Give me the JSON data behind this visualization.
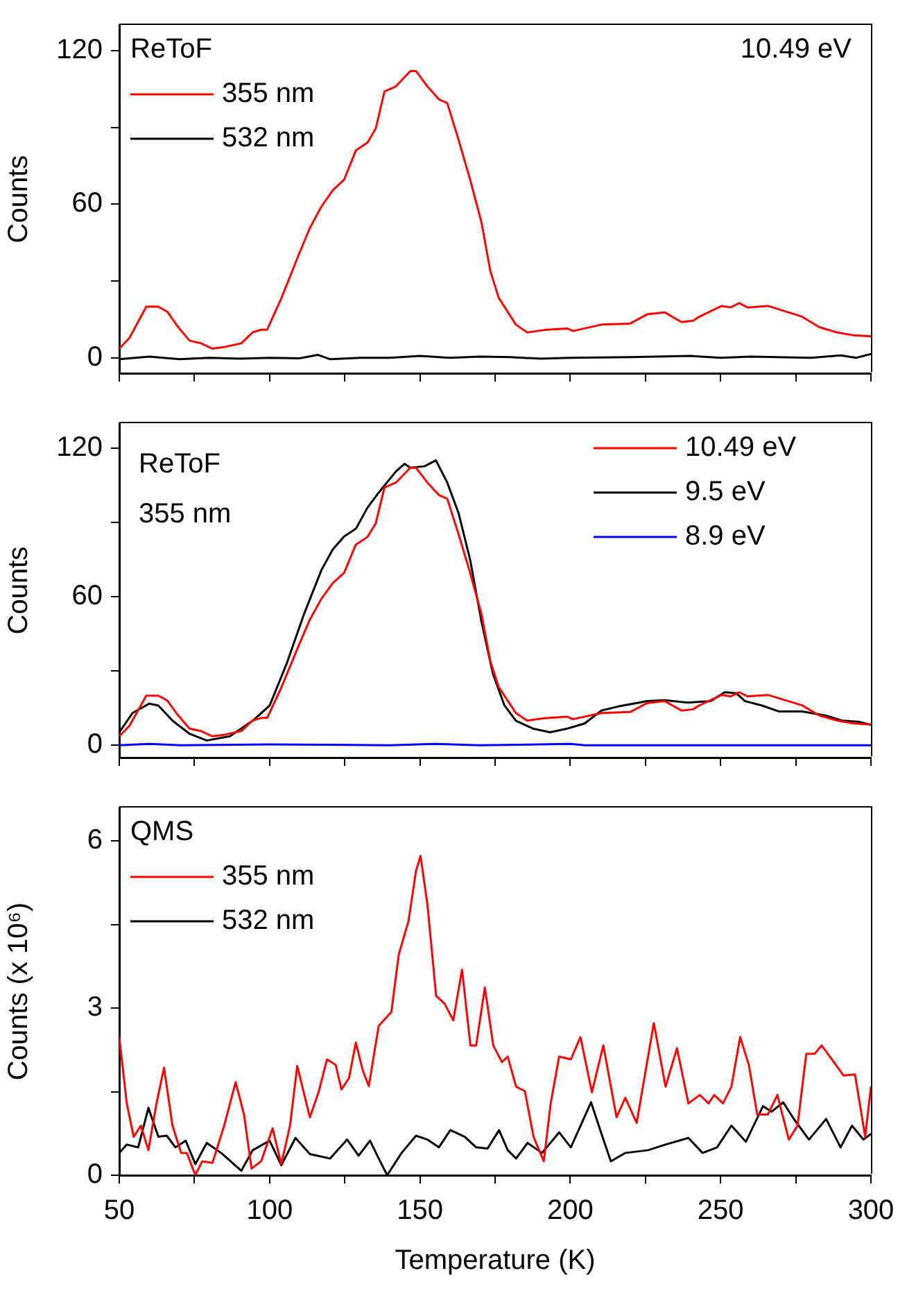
{
  "chart_data": [
    {
      "type": "line",
      "ylabel": "Counts",
      "legend": "top left",
      "legend_title": "ReToF",
      "annotations": [
        "10.49 eV"
      ],
      "tick_labels": "y",
      "xlim": [
        50,
        300
      ],
      "xticks": [
        {
          "value": 50,
          "label": null
        },
        {
          "value": 75,
          "label": null
        },
        {
          "value": 100,
          "label": null
        },
        {
          "value": 125,
          "label": null
        },
        {
          "value": 150,
          "label": null
        },
        {
          "value": 175,
          "label": null
        },
        {
          "value": 200,
          "label": null
        },
        {
          "value": 225,
          "label": null
        },
        {
          "value": 250,
          "label": null
        },
        {
          "value": 275,
          "label": null
        },
        {
          "value": 300,
          "label": null
        }
      ],
      "ylim": [
        -6,
        130
      ],
      "yticks": [
        0,
        {
          "value": 30,
          "label": null
        },
        60,
        {
          "value": 90,
          "label": null
        },
        120
      ],
      "series": [
        {
          "name": "355 nm",
          "color": "#ff0000",
          "x": [
            50,
            53.4,
            59,
            63,
            66,
            69.6,
            73.4,
            77.2,
            81,
            84.9,
            90.6,
            94.4,
            97.3,
            99.2,
            104,
            109.6,
            113.4,
            117.2,
            121,
            124.8,
            128.7,
            132.5,
            135.3,
            138.2,
            142,
            146.8,
            148.7,
            152.5,
            156.3,
            159.1,
            162.9,
            166.7,
            170.5,
            173.4,
            176.2,
            181.9,
            185.7,
            191.4,
            199,
            200.9,
            210.4,
            219.9,
            225.6,
            231.4,
            237,
            240.9,
            242.8,
            250.4,
            253.3,
            256.2,
            259,
            265.7,
            271.4,
            277.1,
            282.8,
            288.6,
            294.3,
            300
          ],
          "values": [
            3.6,
            7.8,
            20,
            20,
            18,
            12,
            6.7,
            5.7,
            3.6,
            4.2,
            5.7,
            10,
            11,
            11,
            23.5,
            40,
            50.7,
            59,
            65.4,
            69.6,
            81,
            84,
            89.5,
            104,
            106,
            112,
            112,
            106,
            101,
            99.5,
            85,
            69.6,
            52.8,
            34,
            23.5,
            13,
            9.9,
            10.9,
            11.5,
            10.5,
            13,
            13.4,
            17,
            17.8,
            14,
            14.5,
            16,
            20.3,
            19.7,
            21.4,
            19.7,
            20.3,
            18.2,
            16.1,
            12,
            10,
            8.8,
            8.4
          ]
        },
        {
          "name": "532 nm",
          "color": "#000000",
          "x": [
            50,
            60,
            70,
            80,
            90,
            100,
            110,
            116,
            120,
            130,
            140,
            150,
            160,
            170,
            180,
            190,
            200,
            220,
            240,
            250,
            260,
            280,
            290,
            295,
            300
          ],
          "values": [
            -0.5,
            0.5,
            -0.5,
            0,
            -0.3,
            0,
            -0.2,
            1.2,
            -0.5,
            0,
            0,
            0.8,
            0,
            0.5,
            0.3,
            -0.3,
            0,
            0.3,
            0.8,
            0,
            0.5,
            0,
            1,
            0,
            1.5
          ]
        }
      ]
    },
    {
      "type": "line",
      "ylabel": "Counts",
      "legend": "top right",
      "annotations": [
        "ReToF",
        "355 nm"
      ],
      "tick_labels": "y",
      "xlim": [
        50,
        300
      ],
      "xticks": [
        {
          "value": 50,
          "label": null
        },
        {
          "value": 75,
          "label": null
        },
        {
          "value": 100,
          "label": null
        },
        {
          "value": 125,
          "label": null
        },
        {
          "value": 150,
          "label": null
        },
        {
          "value": 175,
          "label": null
        },
        {
          "value": 200,
          "label": null
        },
        {
          "value": 225,
          "label": null
        },
        {
          "value": 250,
          "label": null
        },
        {
          "value": 275,
          "label": null
        },
        {
          "value": 300,
          "label": null
        }
      ],
      "ylim": [
        -5,
        130
      ],
      "yticks": [
        0,
        {
          "value": 30,
          "label": null
        },
        60,
        {
          "value": 90,
          "label": null
        },
        120
      ],
      "series": [
        {
          "name": "10.49 eV",
          "color": "#ff0000",
          "x": [
            50,
            53.4,
            59,
            63,
            66,
            69.6,
            73.4,
            77.2,
            81,
            84.9,
            90.6,
            94.4,
            97.3,
            99.2,
            104,
            109.6,
            113.4,
            117.2,
            121,
            124.8,
            128.7,
            132.5,
            135.3,
            138.2,
            142,
            146.8,
            148.7,
            152.5,
            156.3,
            159.1,
            162.9,
            166.7,
            170.5,
            173.4,
            176.2,
            181.9,
            185.7,
            191.4,
            199,
            200.9,
            210.4,
            219.9,
            225.6,
            231.4,
            237,
            240.9,
            242.8,
            250.4,
            253.3,
            256.2,
            259,
            265.7,
            271.4,
            277.1,
            282.8,
            288.6,
            294.3,
            300
          ],
          "values": [
            3.6,
            7.8,
            20,
            20,
            18,
            12,
            6.7,
            5.7,
            3.6,
            4.2,
            5.7,
            10,
            11,
            11,
            23.5,
            40,
            50.7,
            59,
            65.4,
            69.6,
            81,
            84,
            89.5,
            104,
            106,
            112,
            112,
            106,
            101,
            99.5,
            85,
            69.6,
            52.8,
            34,
            23.5,
            13,
            9.9,
            10.9,
            11.5,
            10.5,
            13,
            13.4,
            17,
            17.8,
            14,
            14.5,
            16,
            20.3,
            19.7,
            21.4,
            19.7,
            20.3,
            18.2,
            16.1,
            12,
            10,
            8.8,
            8.4
          ]
        },
        {
          "name": "9.5 eV",
          "color": "#000000",
          "x": [
            50,
            54.4,
            60,
            63,
            67.7,
            73.4,
            79.1,
            86.8,
            94.4,
            100,
            105.7,
            111.4,
            117.2,
            121,
            124.8,
            128.7,
            132.5,
            136.3,
            142,
            144.9,
            146.8,
            151.5,
            155.3,
            159.1,
            162.9,
            166.7,
            170.5,
            174.3,
            178.1,
            181.9,
            187.6,
            193.3,
            199,
            204.8,
            210.4,
            216.2,
            225.7,
            231.4,
            239,
            246.7,
            251.4,
            255.2,
            258.1,
            263.8,
            269.5,
            277.1,
            284.8,
            290.5,
            296.2,
            300
          ],
          "values": [
            5.2,
            13,
            16.8,
            16,
            9.9,
            4.6,
            1.9,
            3.6,
            9.9,
            16,
            33,
            52.8,
            70.6,
            79,
            84.3,
            87.4,
            95.8,
            102,
            110.5,
            113.6,
            112,
            112.6,
            115,
            106,
            93.5,
            74.8,
            49.7,
            28.7,
            16.1,
            9.9,
            6.7,
            5.2,
            6.7,
            8.8,
            14,
            15.7,
            17.8,
            18.2,
            17.2,
            17.8,
            21.4,
            21,
            17.8,
            16,
            13.6,
            13.6,
            12,
            9.9,
            9.4,
            8.2
          ]
        },
        {
          "name": "8.9 eV",
          "color": "#0000ff",
          "x": [
            50,
            60,
            70,
            100,
            140,
            155,
            170,
            200,
            205,
            300
          ],
          "values": [
            0,
            0.5,
            0,
            0.3,
            0,
            0.5,
            0,
            0.5,
            0,
            0
          ]
        }
      ]
    },
    {
      "type": "line",
      "xlabel": "Temperature (K)",
      "ylabel": "Counts (x 10⁶)",
      "legend": "top left",
      "legend_title": "QMS",
      "xlim": [
        50,
        300
      ],
      "xticks": [
        50,
        {
          "value": 75,
          "label": null
        },
        100,
        {
          "value": 125,
          "label": null
        },
        150,
        {
          "value": 175,
          "label": null
        },
        200,
        {
          "value": 225,
          "label": null
        },
        250,
        {
          "value": 275,
          "label": null
        },
        300
      ],
      "ylim": [
        0,
        6.6
      ],
      "yticks": [
        0,
        {
          "value": 1.5,
          "label": null
        },
        3,
        {
          "value": 4.5,
          "label": null
        },
        6
      ],
      "series": [
        {
          "name": "355 nm",
          "color": "#ff0000",
          "x": [
            50,
            52.5,
            54.8,
            57.2,
            59.7,
            62.4,
            64.9,
            67.7,
            70.6,
            72.5,
            75.3,
            77.6,
            81,
            84.9,
            88.7,
            91.5,
            94,
            97.2,
            101,
            103.9,
            106.8,
            109.2,
            113.4,
            116.3,
            119.1,
            122,
            123.9,
            126.4,
            128.7,
            131,
            133,
            136.3,
            140.5,
            143,
            146.2,
            148.7,
            150.2,
            152.5,
            155.4,
            158.2,
            161.1,
            164,
            166.8,
            168.7,
            171.6,
            174.4,
            177.3,
            179.2,
            182,
            184.9,
            187.8,
            191.2,
            193.5,
            196.3,
            200.2,
            203.4,
            207.2,
            211,
            215.4,
            218.3,
            222.1,
            227.8,
            231.7,
            235.5,
            239.3,
            243.1,
            246,
            247.9,
            250.8,
            253.6,
            256.5,
            259.4,
            262.2,
            265.7,
            268.9,
            272.7,
            275.6,
            278.5,
            281.3,
            283.6,
            287,
            290.9,
            294.7,
            298.1,
            300
          ],
          "values": [
            2.48,
            1.29,
            0.69,
            0.89,
            0.45,
            1.29,
            1.93,
            0.89,
            0.4,
            0.4,
            0,
            0.25,
            0.22,
            0.89,
            1.67,
            1.09,
            0.12,
            0.25,
            0.84,
            0.2,
            0.89,
            1.96,
            1.04,
            1.49,
            2.08,
            1.98,
            1.54,
            1.74,
            2.38,
            1.88,
            1.6,
            2.68,
            2.93,
            3.97,
            4.56,
            5.46,
            5.73,
            4.86,
            3.22,
            3.08,
            2.78,
            3.69,
            2.33,
            2.33,
            3.37,
            2.33,
            2.03,
            2.13,
            1.59,
            1.51,
            0.69,
            0.25,
            1.29,
            2.13,
            2.08,
            2.48,
            1.49,
            2.33,
            1.04,
            1.39,
            0.94,
            2.73,
            1.59,
            2.28,
            1.29,
            1.44,
            1.29,
            1.44,
            1.29,
            1.59,
            2.48,
            1.98,
            1.09,
            1.09,
            1.44,
            0.64,
            0.89,
            2.18,
            2.18,
            2.33,
            2.08,
            1.79,
            1.81,
            0.69,
            1.59
          ]
        },
        {
          "name": "532 nm",
          "color": "#000000",
          "x": [
            50,
            52.5,
            56.3,
            59.7,
            63,
            65.8,
            68.7,
            72.1,
            75.3,
            79.1,
            83.9,
            90.6,
            94.4,
            100,
            103.9,
            108.6,
            113.4,
            120.1,
            125.8,
            129.6,
            133.4,
            136.3,
            139.1,
            143.9,
            148.7,
            152.5,
            156.3,
            160.1,
            164.9,
            168.7,
            172.5,
            176.3,
            179.2,
            182,
            185.8,
            190.6,
            196.3,
            200.2,
            206.9,
            210.7,
            213.5,
            218.3,
            225.9,
            231.6,
            239.3,
            244,
            248.8,
            253.6,
            258.4,
            264.1,
            267,
            270.8,
            274.6,
            279.4,
            285.1,
            289.9,
            293.7,
            297.5,
            300
          ],
          "values": [
            0.4,
            0.55,
            0.5,
            1.21,
            0.69,
            0.71,
            0.5,
            0.62,
            0.2,
            0.58,
            0.4,
            0.08,
            0.45,
            0.62,
            0.18,
            0.67,
            0.38,
            0.3,
            0.64,
            0.35,
            0.62,
            0.3,
            0,
            0.4,
            0.71,
            0.64,
            0.5,
            0.81,
            0.69,
            0.5,
            0.48,
            0.81,
            0.45,
            0.3,
            0.58,
            0.4,
            0.77,
            0.5,
            1.31,
            0.69,
            0.25,
            0.4,
            0.45,
            0.55,
            0.67,
            0.4,
            0.5,
            0.89,
            0.6,
            1.24,
            1.14,
            1.31,
            0.99,
            0.64,
            1.01,
            0.5,
            0.89,
            0.64,
            0.74
          ]
        }
      ]
    }
  ]
}
